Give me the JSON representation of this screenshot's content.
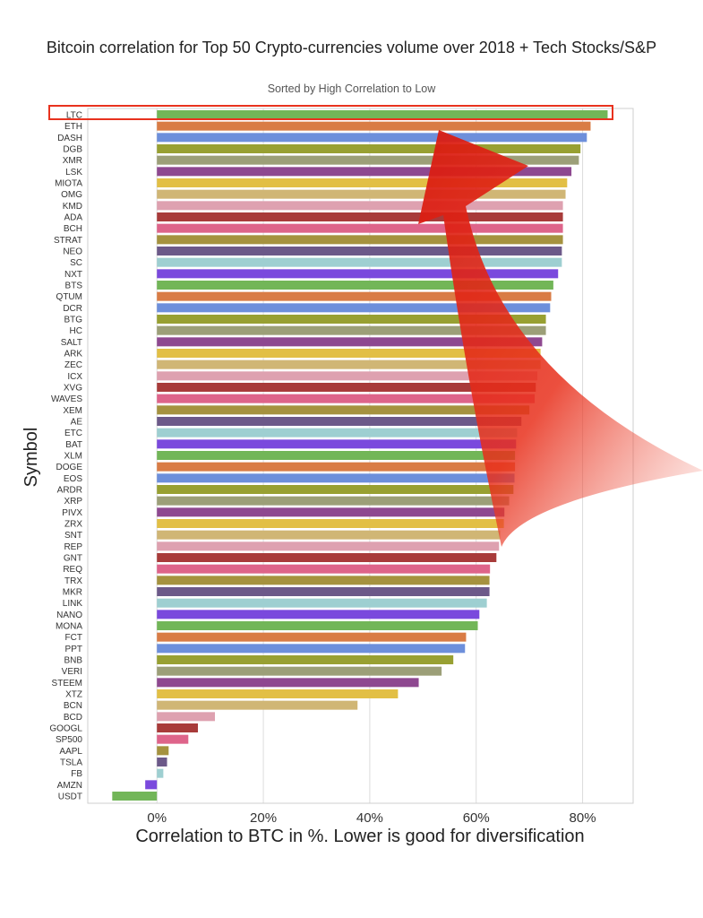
{
  "chart_data": {
    "type": "bar",
    "orientation": "horizontal",
    "title": "Bitcoin correlation for Top 50 Crypto-currencies volume over 2018 + Tech Stocks/S&P",
    "subtitle": "Sorted by High Correlation to Low",
    "xlabel": "Correlation to BTC in %. Lower is good for diversification",
    "ylabel": "Symbol",
    "xlim": [
      -13,
      89.5
    ],
    "xticks": [
      0,
      20,
      40,
      60,
      80
    ],
    "xtick_labels": [
      "0%",
      "20%",
      "40%",
      "60%",
      "80%"
    ],
    "grid": "vertical",
    "categories": [
      "LTC",
      "ETH",
      "DASH",
      "DGB",
      "XMR",
      "LSK",
      "MIOTA",
      "OMG",
      "KMD",
      "ADA",
      "BCH",
      "STRAT",
      "NEO",
      "SC",
      "NXT",
      "BTS",
      "QTUM",
      "DCR",
      "BTG",
      "HC",
      "SALT",
      "ARK",
      "ZEC",
      "ICX",
      "XVG",
      "WAVES",
      "XEM",
      "AE",
      "ETC",
      "BAT",
      "XLM",
      "DOGE",
      "EOS",
      "ARDR",
      "XRP",
      "PIVX",
      "ZRX",
      "SNT",
      "REP",
      "GNT",
      "REQ",
      "TRX",
      "MKR",
      "LINK",
      "NANO",
      "MONA",
      "FCT",
      "PPT",
      "BNB",
      "VERI",
      "STEEM",
      "XTZ",
      "BCN",
      "BCD",
      "GOOGL",
      "SP500",
      "AAPL",
      "TSLA",
      "FB",
      "AMZN",
      "USDT"
    ],
    "values": [
      84.7,
      81.5,
      80.8,
      79.6,
      79.3,
      77.9,
      77.1,
      76.8,
      76.3,
      76.3,
      76.3,
      76.3,
      76.1,
      76.1,
      75.4,
      74.5,
      74.1,
      73.9,
      73.1,
      73.1,
      72.4,
      72.1,
      72.1,
      71.5,
      71.2,
      71.0,
      70.0,
      68.5,
      67.7,
      67.5,
      67.3,
      67.3,
      67.2,
      67.0,
      66.2,
      65.3,
      65.2,
      64.5,
      64.3,
      63.8,
      62.6,
      62.5,
      62.5,
      62.0,
      60.6,
      60.3,
      58.1,
      57.9,
      55.7,
      53.5,
      49.2,
      45.3,
      37.7,
      10.9,
      7.7,
      5.9,
      2.2,
      1.9,
      1.2,
      -2.2,
      -8.4
    ],
    "palette": [
      "#72b658",
      "#d97c45",
      "#6d8fdb",
      "#98a032",
      "#9c9f78",
      "#8e4890",
      "#e2bf45",
      "#d0b675",
      "#dea1b0",
      "#a83b3a",
      "#de648a",
      "#a5923f",
      "#6c5989",
      "#9ecfd1",
      "#7a49dd"
    ],
    "annotations": {
      "highlight_box": "LTC",
      "box_color": "#e8321e",
      "arrow_color": "#e01e14"
    }
  }
}
